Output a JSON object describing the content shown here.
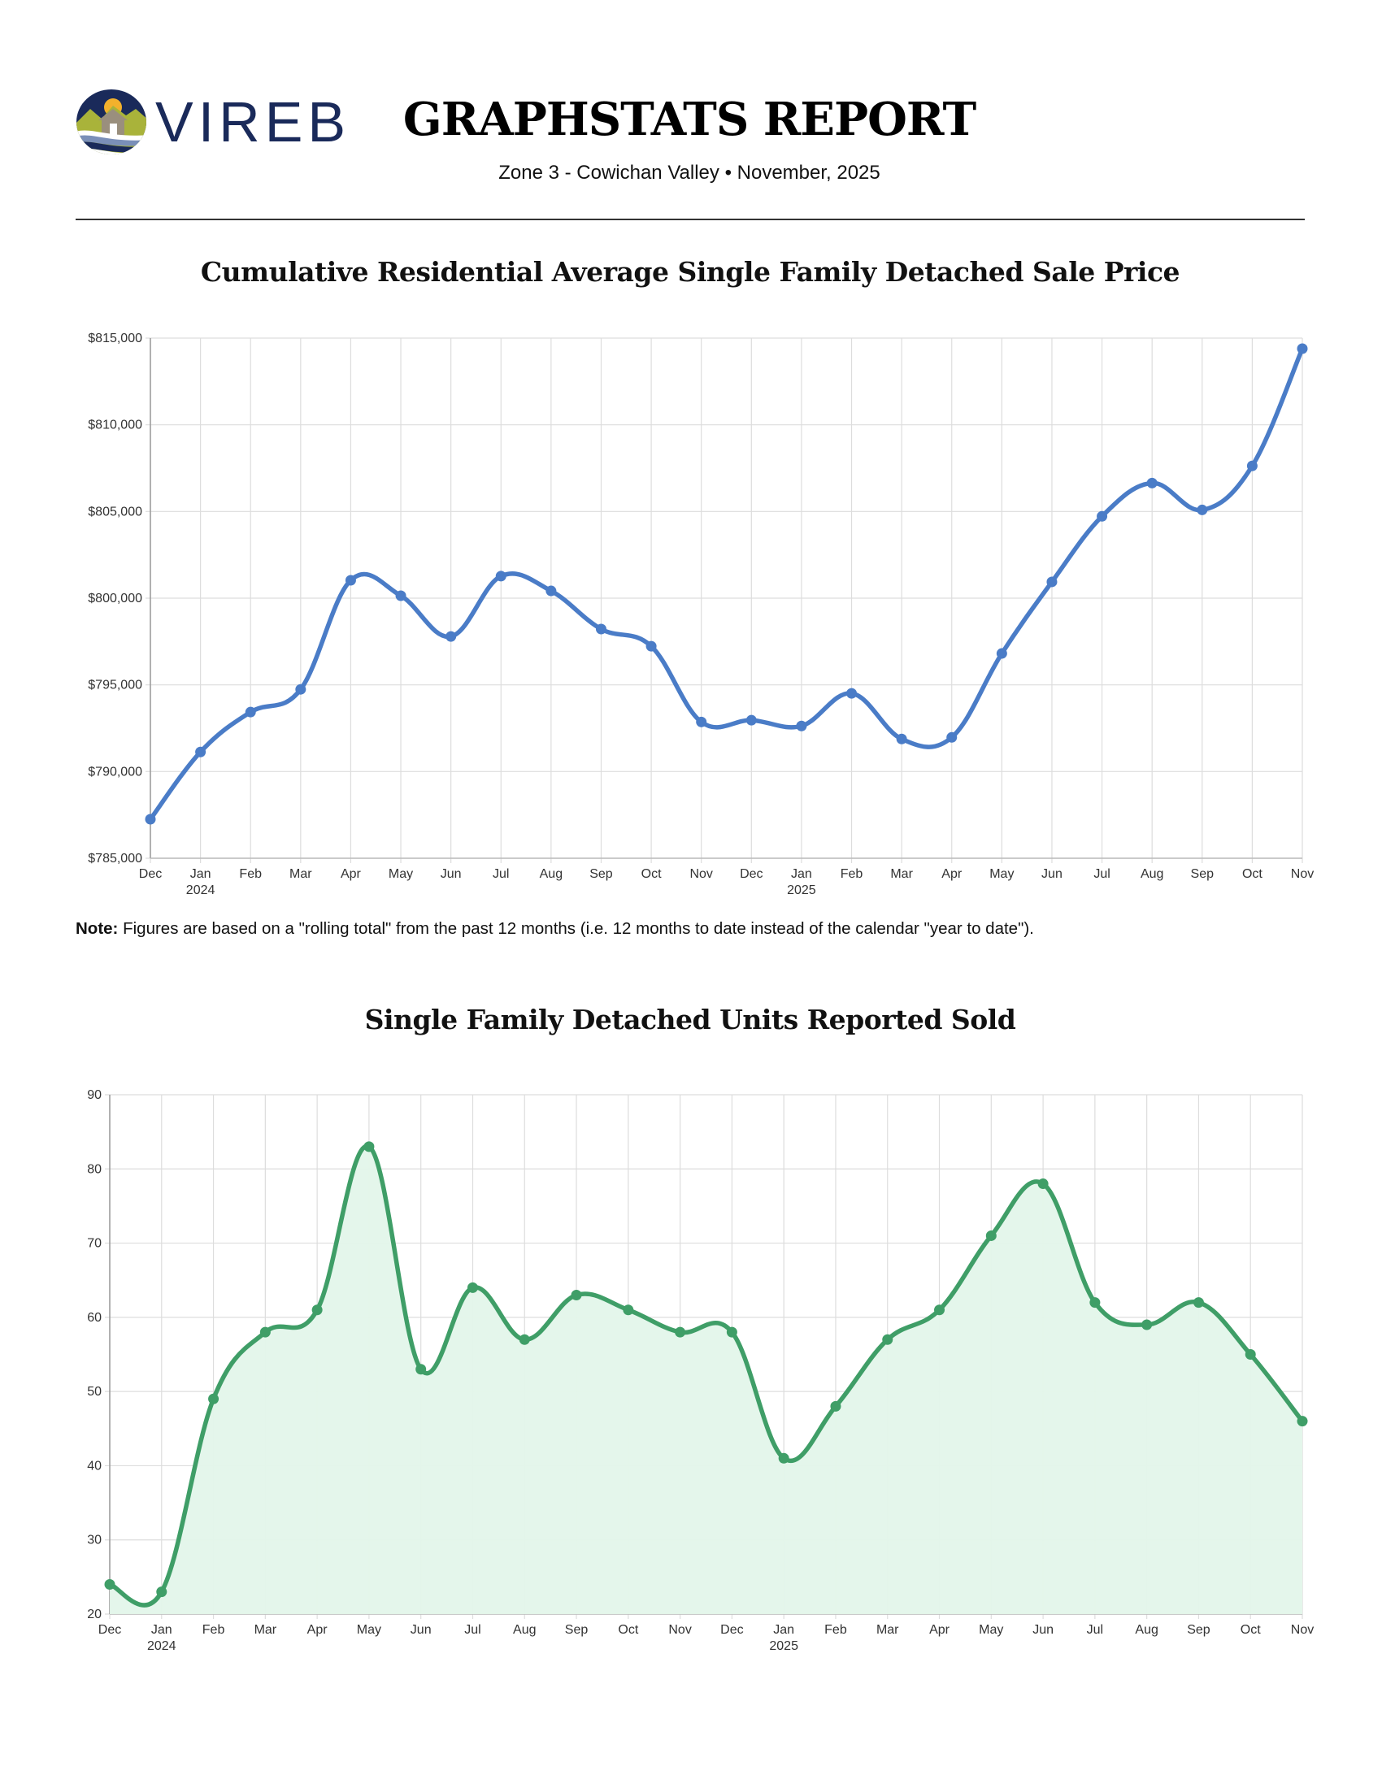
{
  "header": {
    "logo_text": "VIREB",
    "title": "GRAPHSTATS REPORT",
    "subtitle": "Zone 3 - Cowichan Valley  •  November, 2025"
  },
  "note": {
    "label": "Note:",
    "text": " Figures are based on a \"rolling total\" from the past 12 months (i.e. 12 months to date instead of the calendar \"year to date\")."
  },
  "colors": {
    "price_line": "#4a7cc7",
    "units_line": "#3f9e67",
    "units_fill": "#e3f5ea",
    "grid": "#dddddd",
    "logo_navy": "#1a2a5a",
    "logo_green": "#a9b33a",
    "logo_sun": "#f3b12c"
  },
  "chart_data": [
    {
      "type": "line",
      "title": "Cumulative Residential Average Single Family Detached Sale Price",
      "xlabel": "",
      "ylabel": "",
      "categories": [
        "Dec",
        "Jan",
        "Feb",
        "Mar",
        "Apr",
        "May",
        "Jun",
        "Jul",
        "Aug",
        "Sep",
        "Oct",
        "Nov",
        "Dec",
        "Jan",
        "Feb",
        "Mar",
        "Apr",
        "May",
        "Jun",
        "Jul",
        "Aug",
        "Sep",
        "Oct",
        "Nov"
      ],
      "year_labels": {
        "1": "2024",
        "13": "2025"
      },
      "values": [
        787250,
        791130,
        793430,
        794740,
        801030,
        800140,
        797790,
        801270,
        800420,
        798220,
        797230,
        792860,
        792960,
        792630,
        794510,
        791880,
        791970,
        796810,
        800940,
        804720,
        806640,
        805090,
        807630,
        814390
      ],
      "ylim": [
        785000,
        815000
      ],
      "yticks": [
        785000,
        790000,
        795000,
        800000,
        805000,
        810000,
        815000
      ],
      "ytick_labels": [
        "$785,000",
        "$790,000",
        "$795,000",
        "$800,000",
        "$805,000",
        "$810,000",
        "$815,000"
      ],
      "grid": true,
      "smooth": true,
      "markers": true
    },
    {
      "type": "area",
      "title": "Single Family Detached Units Reported Sold",
      "xlabel": "",
      "ylabel": "",
      "categories": [
        "Dec",
        "Jan",
        "Feb",
        "Mar",
        "Apr",
        "May",
        "Jun",
        "Jul",
        "Aug",
        "Sep",
        "Oct",
        "Nov",
        "Dec",
        "Jan",
        "Feb",
        "Mar",
        "Apr",
        "May",
        "Jun",
        "Jul",
        "Aug",
        "Sep",
        "Oct",
        "Nov"
      ],
      "year_labels": {
        "1": "2024",
        "13": "2025"
      },
      "values": [
        24,
        23,
        49,
        58,
        61,
        83,
        53,
        64,
        57,
        63,
        61,
        58,
        58,
        41,
        48,
        57,
        61,
        71,
        78,
        62,
        59,
        62,
        55,
        46
      ],
      "ylim": [
        20,
        90
      ],
      "yticks": [
        20,
        30,
        40,
        50,
        60,
        70,
        80,
        90
      ],
      "ytick_labels": [
        "20",
        "30",
        "40",
        "50",
        "60",
        "70",
        "80",
        "90"
      ],
      "grid": true,
      "smooth": true,
      "markers": true
    }
  ]
}
